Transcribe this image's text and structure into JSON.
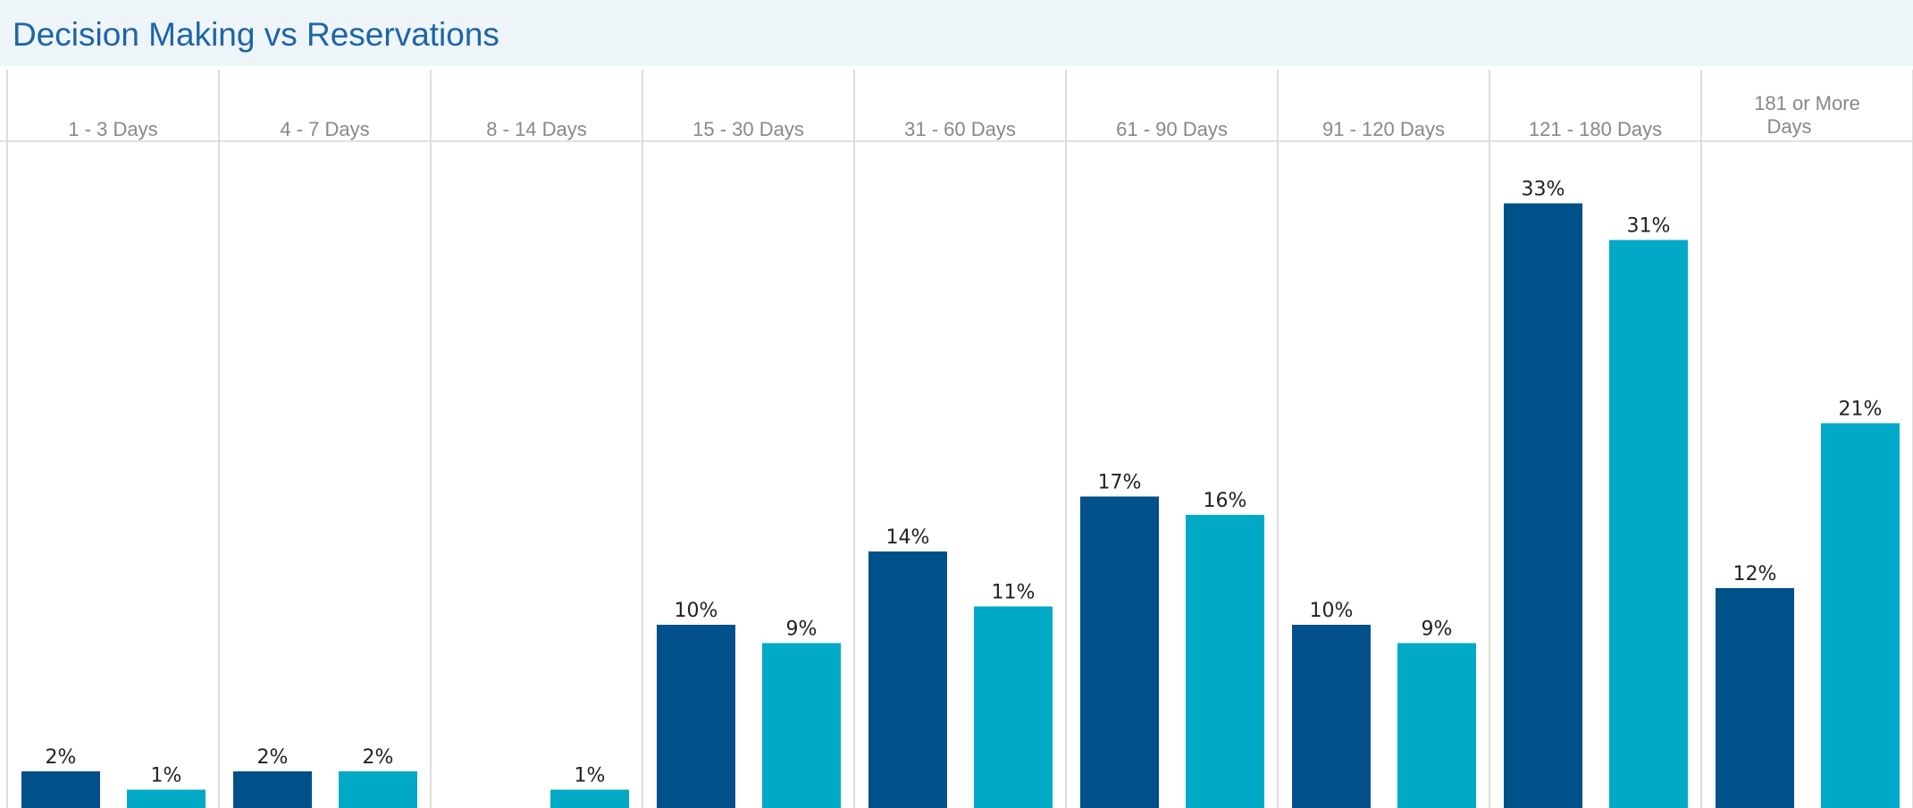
{
  "title": "Decision Making vs Reservations",
  "chart_data": {
    "type": "bar",
    "title": "Decision Making vs Reservations",
    "xlabel": "",
    "ylabel": "",
    "categories": [
      "1 - 3 Days",
      "4 - 7 Days",
      "8 - 14 Days",
      "15 - 30 Days",
      "31 - 60 Days",
      "61 - 90 Days",
      "91 - 120 Days",
      "121 - 180 Days",
      "181 or More Days"
    ],
    "series": [
      {
        "values": [
          2,
          2,
          null,
          10,
          14,
          17,
          10,
          33,
          12
        ],
        "labels": [
          "2%",
          "2%",
          "",
          "10%",
          "14%",
          "17%",
          "10%",
          "33%",
          "12%"
        ],
        "color": "#005089"
      },
      {
        "values": [
          1,
          2,
          1,
          9,
          11,
          16,
          9,
          31,
          21
        ],
        "labels": [
          "1%",
          "2%",
          "1%",
          "9%",
          "11%",
          "16%",
          "9%",
          "31%",
          "21%"
        ],
        "color": "#00a9c6"
      }
    ],
    "unit": "%",
    "grid": false,
    "legend": "none"
  }
}
